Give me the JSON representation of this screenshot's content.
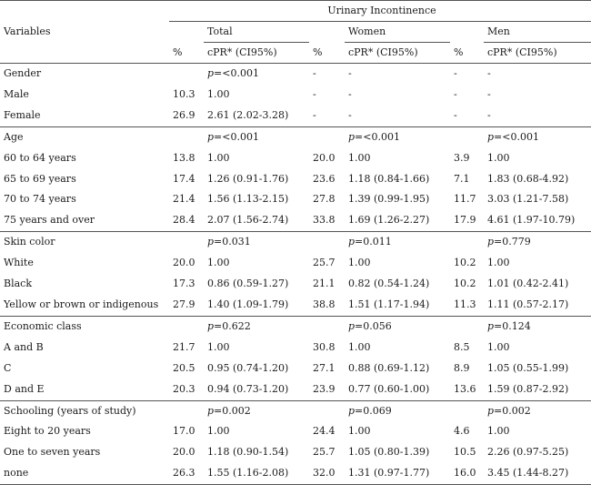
{
  "header": {
    "group_title": "Urinary Incontinence",
    "variables_label": "Variables",
    "groups": [
      "Total",
      "Women",
      "Men"
    ],
    "pct_label": "%",
    "cpr_label": "cPR* (CI95%)"
  },
  "rows": [
    {
      "label": "Gender",
      "section": true,
      "t_pct": "",
      "t_cpr": "p=<0.001",
      "w_pct": "-",
      "w_cpr": "-",
      "m_pct": "-",
      "m_cpr": "-"
    },
    {
      "label": "Male",
      "section": false,
      "t_pct": "10.3",
      "t_cpr": "1.00",
      "w_pct": "-",
      "w_cpr": "-",
      "m_pct": "-",
      "m_cpr": "-"
    },
    {
      "label": "Female",
      "section": false,
      "t_pct": "26.9",
      "t_cpr": "2.61 (2.02-3.28)",
      "w_pct": "-",
      "w_cpr": "-",
      "m_pct": "-",
      "m_cpr": "-"
    },
    {
      "label": "Age",
      "section": true,
      "t_pct": "",
      "t_cpr": "p=<0.001",
      "w_pct": "",
      "w_cpr": "p=<0.001",
      "m_pct": "",
      "m_cpr": "p=<0.001"
    },
    {
      "label": "60 to 64 years",
      "section": false,
      "t_pct": "13.8",
      "t_cpr": "1.00",
      "w_pct": "20.0",
      "w_cpr": "1.00",
      "m_pct": "3.9",
      "m_cpr": "1.00"
    },
    {
      "label": "65 to 69 years",
      "section": false,
      "t_pct": "17.4",
      "t_cpr": "1.26 (0.91-1.76)",
      "w_pct": "23.6",
      "w_cpr": "1.18 (0.84-1.66)",
      "m_pct": "7.1",
      "m_cpr": "1.83 (0.68-4.92)"
    },
    {
      "label": "70 to 74 years",
      "section": false,
      "t_pct": "21.4",
      "t_cpr": "1.56 (1.13-2.15)",
      "w_pct": "27.8",
      "w_cpr": "1.39 (0.99-1.95)",
      "m_pct": "11.7",
      "m_cpr": "3.03 (1.21-7.58)"
    },
    {
      "label": "75 years and over",
      "section": false,
      "t_pct": "28.4",
      "t_cpr": "2.07 (1.56-2.74)",
      "w_pct": "33.8",
      "w_cpr": "1.69 (1.26-2.27)",
      "m_pct": "17.9",
      "m_cpr": "4.61 (1.97-10.79)"
    },
    {
      "label": "Skin color",
      "section": true,
      "t_pct": "",
      "t_cpr": "p=0.031",
      "w_pct": "",
      "w_cpr": "p=0.011",
      "m_pct": "",
      "m_cpr": "p=0.779"
    },
    {
      "label": "White",
      "section": false,
      "t_pct": "20.0",
      "t_cpr": "1.00",
      "w_pct": "25.7",
      "w_cpr": "1.00",
      "m_pct": "10.2",
      "m_cpr": "1.00"
    },
    {
      "label": "Black",
      "section": false,
      "t_pct": "17.3",
      "t_cpr": "0.86 (0.59-1.27)",
      "w_pct": "21.1",
      "w_cpr": "0.82 (0.54-1.24)",
      "m_pct": "10.2",
      "m_cpr": "1.01 (0.42-2.41)"
    },
    {
      "label": "Yellow or brown or indigenous",
      "section": false,
      "t_pct": "27.9",
      "t_cpr": "1.40 (1.09-1.79)",
      "w_pct": "38.8",
      "w_cpr": "1.51 (1.17-1.94)",
      "m_pct": "11.3",
      "m_cpr": "1.11 (0.57-2.17)"
    },
    {
      "label": "Economic class",
      "section": true,
      "t_pct": "",
      "t_cpr": "p=0.622",
      "w_pct": "",
      "w_cpr": "p=0.056",
      "m_pct": "",
      "m_cpr": "p=0.124"
    },
    {
      "label": "A and B",
      "section": false,
      "t_pct": "21.7",
      "t_cpr": "1.00",
      "w_pct": "30.8",
      "w_cpr": "1.00",
      "m_pct": "8.5",
      "m_cpr": "1.00"
    },
    {
      "label": "C",
      "section": false,
      "t_pct": "20.5",
      "t_cpr": "0.95 (0.74-1.20)",
      "w_pct": "27.1",
      "w_cpr": "0.88 (0.69-1.12)",
      "m_pct": "8.9",
      "m_cpr": "1.05 (0.55-1.99)"
    },
    {
      "label": "D and E",
      "section": false,
      "t_pct": "20.3",
      "t_cpr": "0.94 (0.73-1.20)",
      "w_pct": "23.9",
      "w_cpr": "0.77 (0.60-1.00)",
      "m_pct": "13.6",
      "m_cpr": "1.59 (0.87-2.92)"
    },
    {
      "label": "Schooling (years of study)",
      "section": true,
      "t_pct": "",
      "t_cpr": "p=0.002",
      "w_pct": "",
      "w_cpr": "p=0.069",
      "m_pct": "",
      "m_cpr": "p=0.002"
    },
    {
      "label": "Eight to 20 years",
      "section": false,
      "t_pct": "17.0",
      "t_cpr": "1.00",
      "w_pct": "24.4",
      "w_cpr": "1.00",
      "m_pct": "4.6",
      "m_cpr": "1.00"
    },
    {
      "label": "One to seven years",
      "section": false,
      "t_pct": "20.0",
      "t_cpr": "1.18 (0.90-1.54)",
      "w_pct": "25.7",
      "w_cpr": "1.05 (0.80-1.39)",
      "m_pct": "10.5",
      "m_cpr": "2.26 (0.97-5.25)"
    },
    {
      "label": "none",
      "section": false,
      "t_pct": "26.3",
      "t_cpr": "1.55 (1.16-2.08)",
      "w_pct": "32.0",
      "w_cpr": "1.31 (0.97-1.77)",
      "m_pct": "16.0",
      "m_cpr": "3.45 (1.44-8.27)"
    }
  ]
}
